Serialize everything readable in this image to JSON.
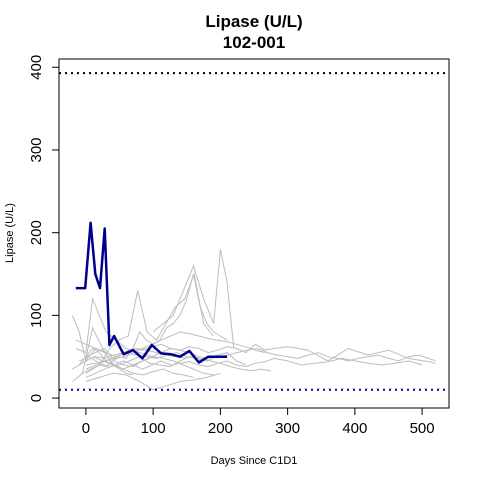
{
  "chart_data": {
    "type": "line",
    "title": "Lipase (U/L)",
    "subtitle": "102-001",
    "xlabel": "Days Since C1D1",
    "ylabel": "Lipase (U/L)",
    "xlim": [
      -40,
      540
    ],
    "ylim": [
      -12,
      410
    ],
    "x_ticks": [
      0,
      100,
      200,
      300,
      400,
      500
    ],
    "y_ticks": [
      0,
      100,
      200,
      300,
      400
    ],
    "reference_lines": [
      {
        "y": 393,
        "style": "dotted",
        "color": "#000000"
      },
      {
        "y": 10,
        "style": "dotted",
        "color": "#00008b"
      }
    ],
    "highlight_color": "#00008b",
    "background_color": "#bdbdbd",
    "highlight_series": {
      "name": "102-001",
      "x": [
        -15,
        -1,
        7,
        14,
        21,
        28,
        35,
        42,
        56,
        70,
        84,
        98,
        112,
        126,
        140,
        154,
        168,
        182,
        196,
        210
      ],
      "y": [
        133,
        133,
        212,
        150,
        133,
        205,
        64,
        75,
        53,
        58,
        48,
        64,
        54,
        53,
        50,
        57,
        43,
        50,
        50,
        50
      ]
    },
    "background_series": [
      {
        "x": [
          -20,
          -10,
          0,
          14,
          28,
          42,
          56
        ],
        "y": [
          100,
          80,
          45,
          60,
          55,
          40,
          35
        ]
      },
      {
        "x": [
          -15,
          0,
          10,
          20,
          30,
          45,
          60,
          80,
          100
        ],
        "y": [
          60,
          55,
          120,
          100,
          80,
          70,
          60,
          55,
          50
        ]
      },
      {
        "x": [
          -10,
          0,
          14,
          28,
          42,
          56,
          70,
          84,
          98,
          112,
          126,
          140,
          154,
          168,
          182,
          196,
          210,
          224,
          238,
          252,
          266,
          280,
          300,
          330,
          360,
          390,
          420,
          450,
          480,
          510,
          520
        ],
        "y": [
          40,
          45,
          50,
          48,
          52,
          55,
          60,
          58,
          62,
          65,
          60,
          58,
          62,
          60,
          55,
          58,
          62,
          60,
          55,
          65,
          58,
          60,
          62,
          58,
          45,
          60,
          52,
          58,
          48,
          44,
          42
        ]
      },
      {
        "x": [
          -5,
          7,
          21,
          35,
          49,
          63,
          77,
          91,
          105,
          119,
          133,
          147,
          161,
          175,
          189
        ],
        "y": [
          30,
          35,
          40,
          60,
          70,
          75,
          130,
          80,
          70,
          90,
          110,
          120,
          150,
          90,
          75
        ]
      },
      {
        "x": [
          0,
          14,
          28,
          42,
          56,
          70,
          84,
          98,
          112,
          126,
          140,
          154,
          168,
          182,
          196,
          210,
          224,
          238,
          252,
          266,
          280,
          300,
          320,
          340,
          360,
          380,
          400,
          420,
          440,
          460,
          480,
          500
        ],
        "y": [
          25,
          30,
          35,
          40,
          45,
          40,
          35,
          40,
          45,
          40,
          42,
          44,
          40,
          38,
          42,
          45,
          40,
          38,
          42,
          44,
          48,
          45,
          40,
          42,
          44,
          48,
          45,
          42,
          40,
          42,
          45,
          40
        ]
      },
      {
        "x": [
          -20,
          -5,
          10,
          25,
          40,
          55,
          70,
          85,
          100,
          115,
          130,
          145,
          160
        ],
        "y": [
          20,
          30,
          85,
          60,
          40,
          35,
          30,
          28,
          32,
          35,
          30,
          28,
          25
        ]
      },
      {
        "x": [
          0,
          15,
          30,
          45,
          60,
          75,
          90,
          105,
          120,
          135,
          150,
          165,
          180,
          195,
          210,
          225,
          240,
          255,
          270,
          285,
          300,
          315,
          330,
          345,
          360,
          375,
          390,
          405,
          420,
          435,
          450,
          465,
          480,
          495,
          510,
          520
        ],
        "y": [
          35,
          40,
          45,
          50,
          55,
          52,
          50,
          48,
          52,
          55,
          50,
          48,
          45,
          50,
          52,
          55,
          58,
          60,
          55,
          52,
          50,
          48,
          52,
          55,
          50,
          48,
          45,
          48,
          50,
          52,
          48,
          45,
          50,
          52,
          48,
          45
        ]
      },
      {
        "x": [
          -10,
          5,
          20,
          35,
          50,
          65,
          80,
          95,
          110,
          125,
          140,
          155,
          170,
          185,
          200,
          215,
          230,
          245,
          260,
          275
        ],
        "y": [
          45,
          50,
          42,
          38,
          40,
          45,
          50,
          42,
          40,
          38,
          45,
          50,
          48,
          45,
          42,
          38,
          35,
          33,
          35,
          33
        ]
      },
      {
        "x": [
          0,
          10,
          20,
          30,
          40,
          50,
          60,
          70,
          80,
          90,
          100,
          110,
          120,
          130,
          140,
          150,
          160,
          170,
          180,
          190,
          200,
          210
        ],
        "y": [
          30,
          35,
          40,
          38,
          45,
          50,
          48,
          60,
          80,
          70,
          65,
          70,
          85,
          90,
          100,
          120,
          150,
          110,
          90,
          80,
          75,
          70
        ]
      },
      {
        "x": [
          100,
          115,
          130,
          145,
          160,
          175,
          190,
          200,
          210,
          220
        ],
        "y": [
          80,
          90,
          100,
          130,
          160,
          120,
          90,
          180,
          140,
          60
        ]
      },
      {
        "x": [
          0,
          14,
          28,
          42,
          56,
          70,
          84,
          98,
          112,
          126,
          140,
          154,
          168,
          182,
          196,
          210,
          224,
          238
        ],
        "y": [
          50,
          55,
          60,
          45,
          40,
          38,
          45,
          50,
          55,
          60,
          58,
          55,
          50,
          48,
          52,
          55,
          45,
          40
        ]
      },
      {
        "x": [
          -15,
          0,
          15,
          30,
          45,
          60,
          75,
          90,
          105,
          120,
          135,
          150
        ],
        "y": [
          70,
          65,
          60,
          55,
          50,
          55,
          60,
          58,
          55,
          52,
          50,
          48
        ]
      },
      {
        "x": [
          0,
          20,
          40,
          60,
          80,
          100,
          120,
          140,
          160,
          180,
          200
        ],
        "y": [
          20,
          25,
          30,
          28,
          20,
          10,
          15,
          20,
          22,
          25,
          30
        ]
      },
      {
        "x": [
          -20,
          -10,
          0,
          10,
          20,
          30,
          40,
          50,
          60,
          70
        ],
        "y": [
          35,
          40,
          50,
          60,
          55,
          45,
          40,
          35,
          30,
          28
        ]
      },
      {
        "x": [
          0,
          14,
          28,
          42,
          56,
          70,
          84,
          98,
          112,
          126,
          140,
          154,
          168,
          182,
          196,
          210,
          224,
          238,
          252,
          266
        ],
        "y": [
          40,
          42,
          45,
          48,
          50,
          55,
          60,
          65,
          70,
          75,
          80,
          78,
          75,
          72,
          70,
          68,
          65,
          62,
          58,
          55
        ]
      },
      {
        "x": [
          10,
          25,
          40,
          55,
          70,
          85,
          100,
          115,
          130,
          145,
          160,
          175,
          190
        ],
        "y": [
          50,
          45,
          40,
          35,
          40,
          45,
          50,
          48,
          45,
          40,
          35,
          30,
          28
        ]
      }
    ]
  }
}
